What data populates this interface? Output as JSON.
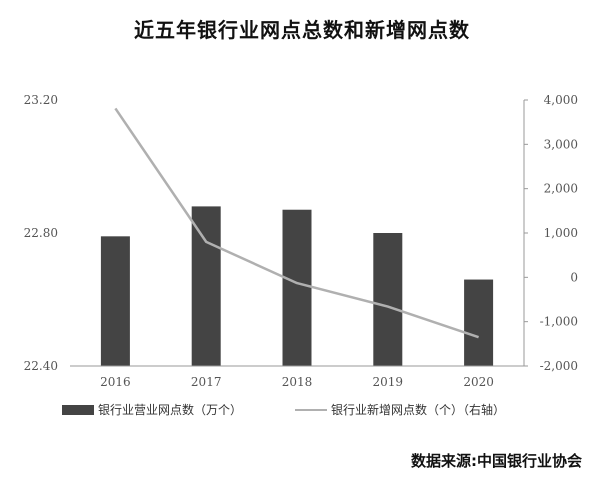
{
  "title": "近五年银行业网点总数和新增网点数",
  "source": "数据来源:中国银行业协会",
  "colors": {
    "bar": "#444444",
    "line": "#b0b0b0",
    "axis": "#999999"
  },
  "chart_data": {
    "type": "bar",
    "title": "近五年银行业网点总数和新增网点数",
    "categories": [
      "2016",
      "2017",
      "2018",
      "2019",
      "2020"
    ],
    "series": [
      {
        "name": "银行业营业网点数（万个）",
        "type": "bar",
        "axis": "left",
        "values": [
          22.79,
          22.88,
          22.87,
          22.8,
          22.66
        ]
      },
      {
        "name": "银行业新增网点数（个）（右轴）",
        "type": "line",
        "axis": "right",
        "values": [
          3810,
          800,
          -130,
          -660,
          -1350
        ]
      }
    ],
    "y_left": {
      "ylim": [
        22.4,
        23.2
      ],
      "ticks": [
        "22.40",
        "22.80",
        "23.20"
      ],
      "tick_values": [
        22.4,
        22.8,
        23.2
      ]
    },
    "y_right": {
      "ylim": [
        -2000,
        4000
      ],
      "ticks": [
        "-2,000",
        "-1,000",
        "0",
        "1,000",
        "2,000",
        "3,000",
        "4,000"
      ],
      "tick_values": [
        -2000,
        -1000,
        0,
        1000,
        2000,
        3000,
        4000
      ]
    },
    "grid": false,
    "legend_position": "bottom"
  }
}
